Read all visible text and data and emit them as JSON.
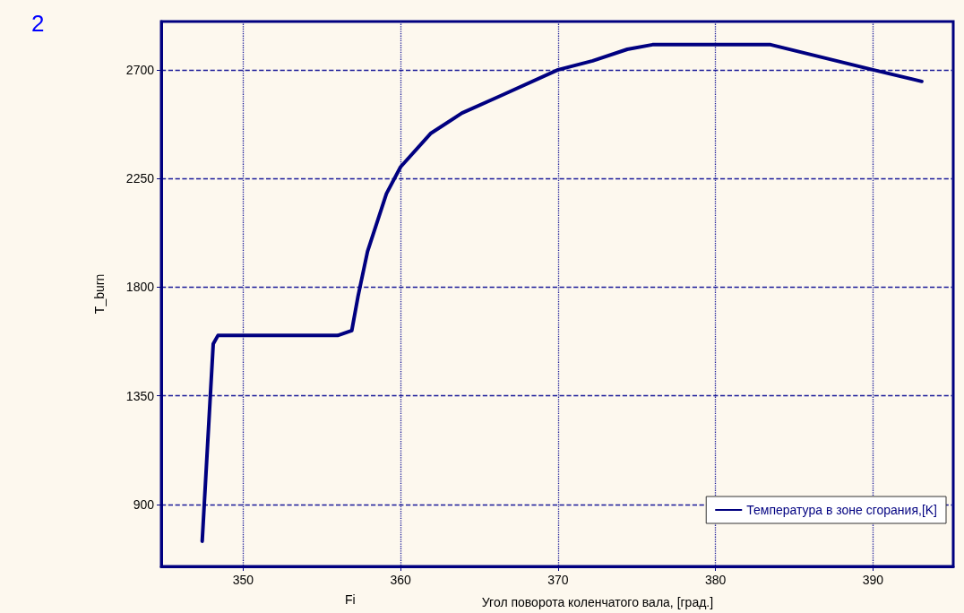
{
  "chart_data": {
    "type": "line",
    "title": "2",
    "xlabel": "Угол поворота коленчатого вала, [град.]",
    "ylabel": "T_burn",
    "annotations": [
      "Fi"
    ],
    "x": [
      347.4,
      348.1,
      348.4,
      356.0,
      356.9,
      357.3,
      357.9,
      359.1,
      360,
      361.9,
      363.9,
      366.4,
      370,
      372.2,
      374.4,
      376,
      383.5,
      390,
      393.1
    ],
    "series": [
      {
        "name": "Температура в зоне сгорания,[K]",
        "color": "#000080",
        "values": [
          748,
          1565,
          1600,
          1600,
          1620,
          1763,
          1948,
          2187,
          2298,
          2436,
          2521,
          2594,
          2700,
          2737,
          2785,
          2804,
          2804,
          2700,
          2652
        ]
      }
    ],
    "xlim": [
      344.8,
      395.1
    ],
    "xticks": [
      350,
      360,
      370,
      380,
      390
    ],
    "ylim": [
      644,
      2900
    ],
    "yticks": [
      900,
      1350,
      1800,
      2250,
      2700
    ],
    "grid": true,
    "legend": "bottom right",
    "marker": "none",
    "line_style": "solid"
  }
}
